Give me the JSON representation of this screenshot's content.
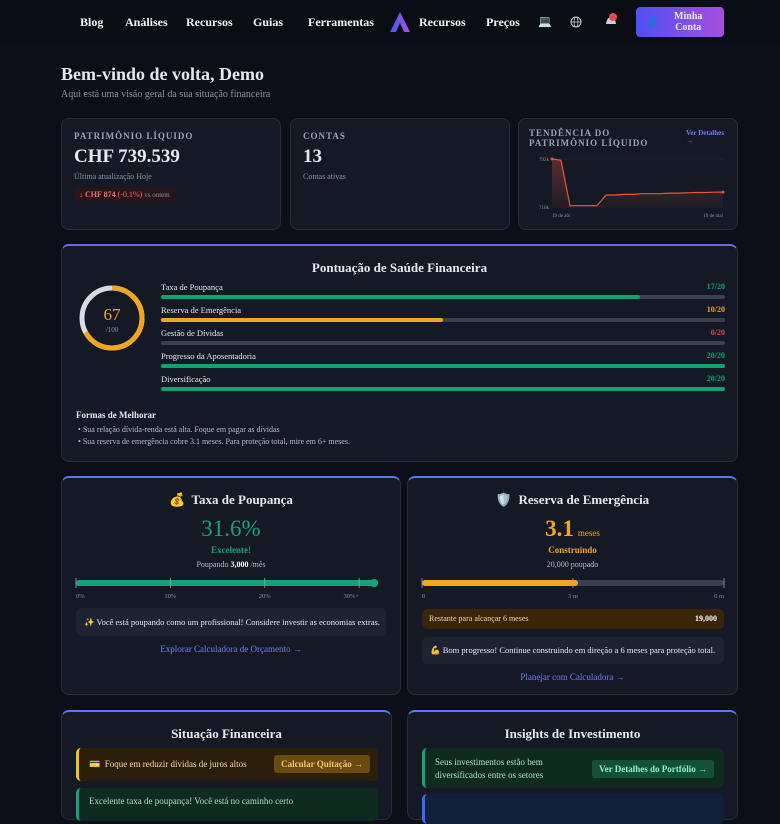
{
  "nav": {
    "links": [
      "Blog",
      "Análises",
      "Recursos",
      "Guias",
      "Ferramentas"
    ],
    "links_right": [
      "Recursos",
      "Preços"
    ],
    "account_button": "Minha Conta"
  },
  "welcome": {
    "title": "Bem-vindo de volta, Demo",
    "subtitle": "Aqui está uma visão geral da sua situação financeira"
  },
  "net_worth": {
    "label": "PATRIMÔNIO LÍQUIDO",
    "value": "CHF 739.539",
    "updated": "Última atualização Hoje",
    "change": "↓ CHF 874",
    "change_pct": "(-0.1%)",
    "change_note": "vs ontem"
  },
  "accounts": {
    "label": "CONTAS",
    "value": 13,
    "note": "Contas ativas"
  },
  "trend": {
    "label": "TENDÊNCIA DO PATRIMÔNIO LÍQUIDO",
    "link": "Ver Detalhes →",
    "chart": {
      "type": "line",
      "color": "#e8553a",
      "categories": [
        "19 de abr",
        null,
        null,
        null,
        null,
        null,
        null,
        null,
        null,
        null,
        null,
        null,
        null,
        null,
        null,
        null,
        null,
        null,
        null,
        "19 de mai"
      ],
      "values": [
        792000,
        790000,
        718000,
        718000,
        718000,
        718000,
        735000,
        735000,
        736000,
        736000,
        737000,
        737000,
        737000,
        738000,
        738000,
        738500,
        739000,
        739000,
        739500,
        739539
      ],
      "ylim": [
        716000,
        792000
      ],
      "yticks": [
        {
          "value": 792000,
          "label": "792k"
        },
        {
          "value": 716000,
          "label": "716k"
        }
      ]
    }
  },
  "health": {
    "title": "Pontuação de Saúde Financeira",
    "score": 67,
    "max": 100,
    "max_label": "/100",
    "items": [
      {
        "name": "Taxa de Poupança",
        "label": "17/20",
        "value": 17,
        "max": 20,
        "color": "#10a36f"
      },
      {
        "name": "Reserva de Emergência",
        "label": "10/20",
        "value": 10,
        "max": 20,
        "color": "#f2a51f"
      },
      {
        "name": "Gestão de Dívidas",
        "label": "0/20",
        "value": 0,
        "max": 20,
        "color": "#e5484d"
      },
      {
        "name": "Progresso da Aposentadoria",
        "label": "20/20",
        "value": 20,
        "max": 20,
        "color": "#10a36f"
      },
      {
        "name": "Diversificação",
        "label": "20/20",
        "value": 20,
        "max": 20,
        "color": "#10a36f"
      }
    ],
    "improve_title": "Formas de Melhorar",
    "tips": [
      "Sua relação dívida-renda está alta. Foque em pagar as dívidas",
      "Sua reserva de emergência cobre 3.1 meses. Para proteção total, mire em 6+ meses."
    ]
  },
  "savings": {
    "icon": "💰",
    "title": "Taxa de Poupança",
    "value": 31.6,
    "value_label": "31.6%",
    "status": "Excelente!",
    "saving_prefix": "Poupando",
    "saving_amount": "3,000",
    "saving_suffix": "/mês",
    "xlim": [
      0,
      32
    ],
    "ticks": [
      {
        "value": 0,
        "label": "0%"
      },
      {
        "value": 10,
        "label": "10%"
      },
      {
        "value": 20,
        "label": "20%"
      },
      {
        "value": 30,
        "label": "30%+"
      }
    ],
    "message": "✨ Você está poupando como um profissional! Considere investir as economias extras.",
    "link": "Explorar Calculadora de Orçamento →"
  },
  "emergency": {
    "icon": "🛡️",
    "title": "Reserva de Emergência",
    "value": 3.1,
    "unit": "meses",
    "status": "Construindo",
    "saved": "20,000 poupado",
    "xlim": [
      0,
      6
    ],
    "ticks": [
      0,
      {
        "value": 3,
        "label": "3 m"
      },
      {
        "value": 6,
        "label": "6 m"
      }
    ],
    "remaining_label": "Restante para alcançar 6 meses",
    "remaining_value": "19,000",
    "message": "💪 Bom progresso! Continue construindo em direção a 6 meses para proteção total.",
    "link": "Planejar com Calculadora →"
  },
  "situation": {
    "title": "Situação Financeira",
    "items": [
      {
        "icon": "💳",
        "text": "Foque em reduzir dívidas de juros altos",
        "action": "Calcular Quitação →"
      },
      {
        "text": "Excelente taxa de poupança! Você está no caminho certo"
      }
    ]
  },
  "insights": {
    "title": "Insights de Investimento",
    "items": [
      {
        "text": "Seus investimentos estão bem diversificados entre os setores",
        "action": "Ver Detalhes do Portfólio →"
      }
    ]
  }
}
